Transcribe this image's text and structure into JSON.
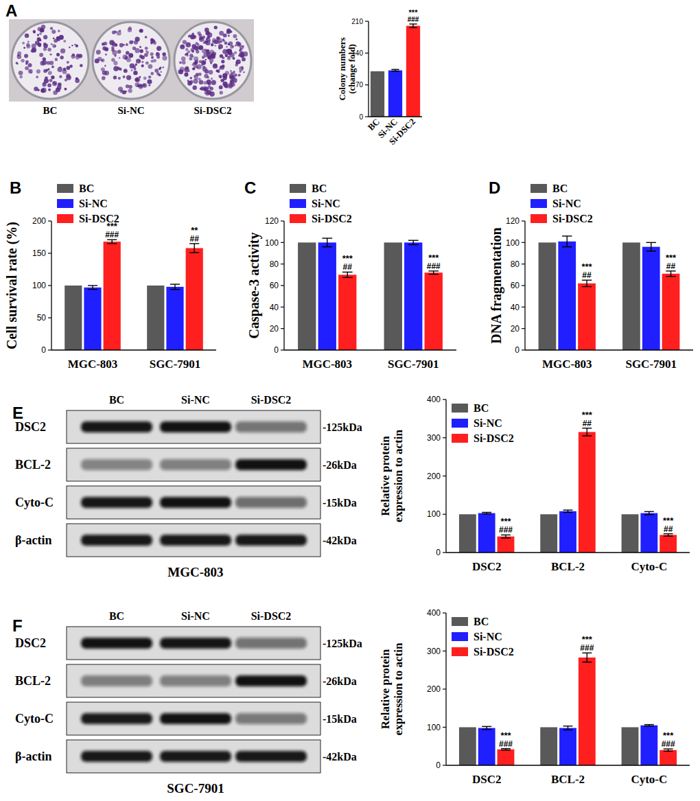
{
  "chart_data": [
    {
      "type": "bar",
      "panel": "A",
      "y_label": "Colony numbers (change fold)",
      "categories": [
        "BC",
        "Si-NC",
        "Si-DSC2"
      ],
      "values": [
        100,
        102,
        200
      ],
      "errors": [
        0,
        2,
        4
      ],
      "colors": [
        "#595959",
        "#1f1fff",
        "#ff1f1f"
      ],
      "stars": [
        null,
        null,
        "***"
      ],
      "hashes": [
        null,
        null,
        "###"
      ],
      "ylim": [
        0,
        210
      ],
      "yticks": [
        0,
        70,
        140,
        210
      ],
      "grid": false
    },
    {
      "type": "bar",
      "panel": "B",
      "y_label": "Cell survival rate (%)",
      "categories": [
        "MGC-803",
        "SGC-7901"
      ],
      "legend": "top-left",
      "grid": false,
      "ylim": [
        0,
        200
      ],
      "yticks": [
        0,
        50,
        100,
        150,
        200
      ],
      "series": [
        {
          "name": "BC",
          "color": "#595959",
          "values": [
            100,
            100
          ],
          "errors": [
            0,
            0
          ]
        },
        {
          "name": "Si-NC",
          "color": "#1f1fff",
          "values": [
            97,
            98
          ],
          "errors": [
            3,
            4
          ]
        },
        {
          "name": "Si-DSC2",
          "color": "#ff1f1f",
          "values": [
            168,
            158
          ],
          "errors": [
            3,
            7
          ],
          "stars": [
            "***",
            "**"
          ],
          "hashes": [
            "###",
            "##"
          ]
        }
      ]
    },
    {
      "type": "bar",
      "panel": "C",
      "y_label": "Caspase-3 activity",
      "categories": [
        "MGC-803",
        "SGC-7901"
      ],
      "legend": "top-left",
      "grid": false,
      "ylim": [
        0,
        120
      ],
      "yticks": [
        0,
        20,
        40,
        60,
        80,
        100,
        120
      ],
      "series": [
        {
          "name": "BC",
          "color": "#595959",
          "values": [
            100,
            100
          ],
          "errors": [
            0,
            0
          ]
        },
        {
          "name": "Si-NC",
          "color": "#1f1fff",
          "values": [
            100,
            100
          ],
          "errors": [
            4,
            2
          ]
        },
        {
          "name": "Si-DSC2",
          "color": "#ff1f1f",
          "values": [
            70,
            72
          ],
          "errors": [
            2.5,
            1.5
          ],
          "stars": [
            "***",
            "***"
          ],
          "hashes": [
            "##",
            "###"
          ]
        }
      ]
    },
    {
      "type": "bar",
      "panel": "D",
      "y_label": "DNA fragmentation",
      "categories": [
        "MGC-803",
        "SGC-7901"
      ],
      "legend": "top-left",
      "grid": false,
      "ylim": [
        0,
        120
      ],
      "yticks": [
        0,
        20,
        40,
        60,
        80,
        100,
        120
      ],
      "series": [
        {
          "name": "BC",
          "color": "#595959",
          "values": [
            100,
            100
          ],
          "errors": [
            0,
            0
          ]
        },
        {
          "name": "Si-NC",
          "color": "#1f1fff",
          "values": [
            101,
            96
          ],
          "errors": [
            5,
            4
          ]
        },
        {
          "name": "Si-DSC2",
          "color": "#ff1f1f",
          "values": [
            62,
            71
          ],
          "errors": [
            3,
            2.5
          ],
          "stars": [
            "***",
            "***"
          ],
          "hashes": [
            "##",
            "##"
          ]
        }
      ]
    },
    {
      "type": "bar",
      "y_label": "Relative protein expression to actin",
      "categories": [
        "DSC2",
        "BCL-2",
        "Cyto-C"
      ],
      "legend": "top-left",
      "grid": false,
      "ylim": [
        0,
        400
      ],
      "yticks": [
        0,
        100,
        200,
        300,
        400
      ],
      "series": [
        {
          "name": "BC",
          "color": "#595959",
          "values": [
            100,
            100,
            100
          ],
          "errors": [
            0,
            0,
            0
          ]
        },
        {
          "name": "Si-NC",
          "color": "#1f1fff",
          "values": [
            103,
            108,
            103
          ],
          "errors": [
            2,
            3,
            4
          ]
        },
        {
          "name": "Si-DSC2",
          "color": "#ff1f1f",
          "values": [
            42,
            315,
            46
          ],
          "errors": [
            4,
            10,
            3
          ],
          "stars": [
            "***",
            "***",
            "***"
          ],
          "hashes": [
            "###",
            "##",
            "##"
          ]
        }
      ]
    },
    {
      "type": "bar",
      "y_label": "Relative protein expression to actin",
      "categories": [
        "DSC2",
        "BCL-2",
        "Cyto-C"
      ],
      "legend": "top-left",
      "grid": false,
      "ylim": [
        0,
        400
      ],
      "yticks": [
        0,
        100,
        200,
        300,
        400
      ],
      "series": [
        {
          "name": "BC",
          "color": "#595959",
          "values": [
            100,
            100,
            100
          ],
          "errors": [
            0,
            0,
            0
          ]
        },
        {
          "name": "Si-NC",
          "color": "#1f1fff",
          "values": [
            98,
            98,
            105
          ],
          "errors": [
            4,
            5,
            2
          ]
        },
        {
          "name": "Si-DSC2",
          "color": "#ff1f1f",
          "values": [
            42,
            283,
            40
          ],
          "errors": [
            2,
            12,
            3
          ],
          "stars": [
            "***",
            "***",
            "***"
          ],
          "hashes": [
            "###",
            "###",
            "###"
          ]
        }
      ]
    }
  ],
  "images": {
    "labels": [
      "BC",
      "Si-NC",
      "Si-DSC2"
    ]
  },
  "blots": [
    {
      "panel": "E",
      "cell_line": "MGC-803",
      "lanes": [
        "BC",
        "Si-NC",
        "Si-DSC2"
      ],
      "proteins": [
        "DSC2",
        "BCL-2",
        "Cyto-C",
        "β-actin"
      ],
      "sizes": [
        "-125kDa",
        "-26kDa",
        "-15kDa",
        "-42kDa"
      ]
    },
    {
      "panel": "F",
      "cell_line": "SGC-7901",
      "lanes": [
        "BC",
        "Si-NC",
        "Si-DSC2"
      ],
      "proteins": [
        "DSC2",
        "BCL-2",
        "Cyto-C",
        "β-actin"
      ],
      "sizes": [
        "-125kDa",
        "-26kDa",
        "-15kDa",
        "-42kDa"
      ]
    }
  ]
}
